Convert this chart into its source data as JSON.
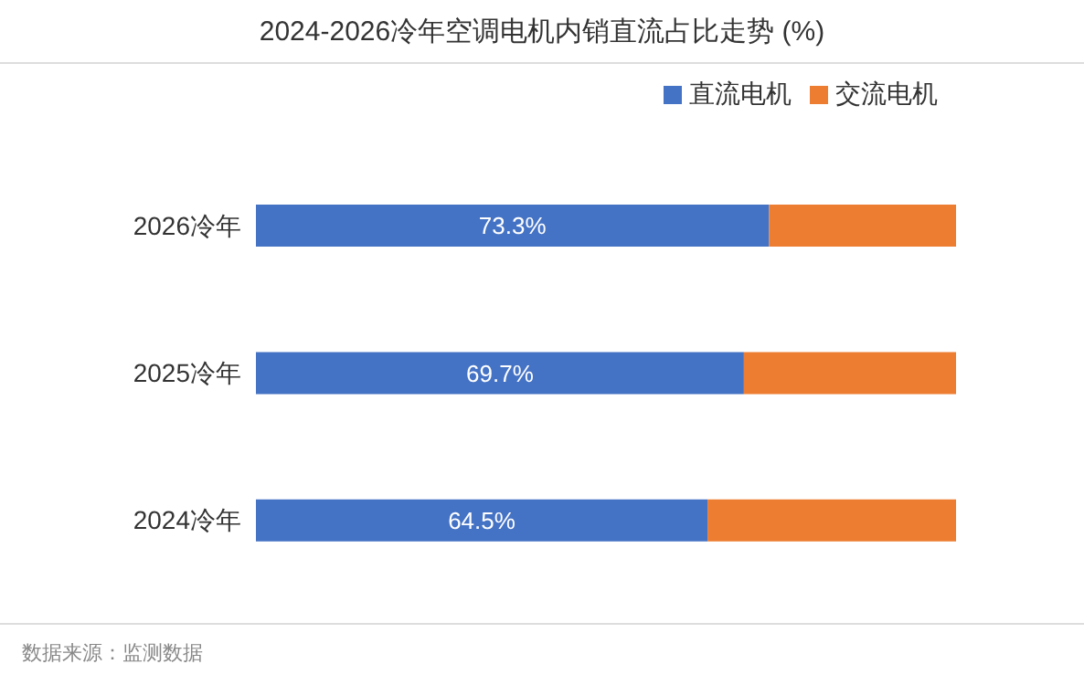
{
  "chart_data": {
    "type": "bar",
    "orientation": "horizontal",
    "stacked": true,
    "title": "2024-2026冷年空调电机内销直流占比走势 (%)",
    "categories": [
      "2026冷年",
      "2025冷年",
      "2024冷年"
    ],
    "series": [
      {
        "name": "直流电机",
        "color": "#4472c4",
        "values": [
          73.3,
          69.7,
          64.5
        ],
        "value_labels": [
          "73.3%",
          "69.7%",
          "64.5%"
        ]
      },
      {
        "name": "交流电机",
        "color": "#ed7d31",
        "values": [
          26.7,
          30.3,
          35.5
        ]
      }
    ],
    "legend": "top right",
    "annotations": [
      "数据来源：监测数据"
    ]
  }
}
